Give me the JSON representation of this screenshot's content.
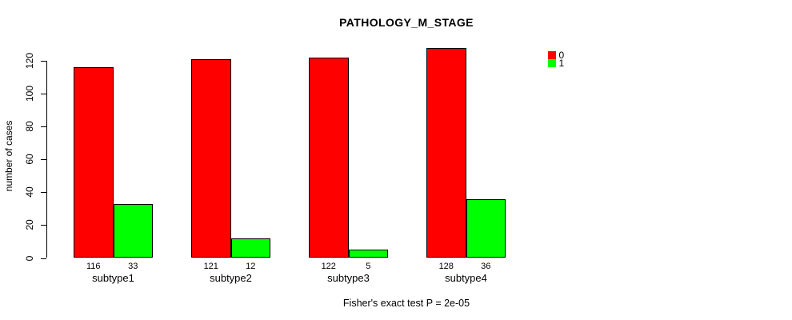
{
  "title": "PATHOLOGY_M_STAGE",
  "annotation": "Fisher's exact test P = 2e-05",
  "colors": {
    "series0": "#ff0000",
    "series1": "#00ff00",
    "axis": "#000000",
    "background": "#ffffff"
  },
  "chart_data": {
    "type": "bar",
    "title": "PATHOLOGY_M_STAGE",
    "categories": [
      "subtype1",
      "subtype2",
      "subtype3",
      "subtype4"
    ],
    "series": [
      {
        "name": "0",
        "color": "#ff0000",
        "values": [
          116,
          121,
          122,
          128
        ]
      },
      {
        "name": "1",
        "color": "#00ff00",
        "values": [
          33,
          12,
          5,
          36
        ]
      }
    ],
    "bar_value_labels": [
      [
        "116",
        "33"
      ],
      [
        "121",
        "12"
      ],
      [
        "122",
        "5"
      ],
      [
        "128",
        "36"
      ]
    ],
    "xlabel": "",
    "ylabel": "number of cases",
    "yticks": [
      "0",
      "20",
      "40",
      "60",
      "80",
      "100",
      "120"
    ],
    "ytick_values": [
      0,
      20,
      40,
      60,
      80,
      100,
      120
    ],
    "ylim": [
      0,
      120
    ],
    "grid": false,
    "legend_position": "top-right",
    "annotation": "Fisher's exact test P = 2e-05"
  }
}
